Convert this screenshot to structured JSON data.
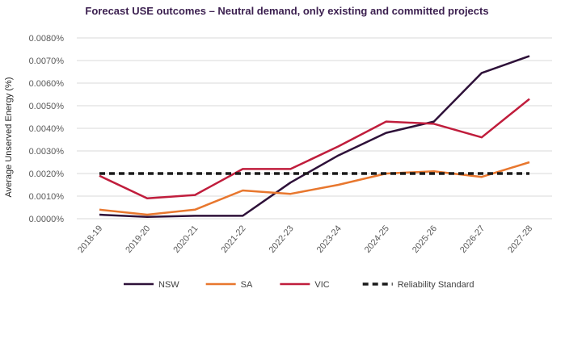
{
  "chart_data": {
    "type": "line",
    "title": "Forecast USE outcomes – Neutral demand, only existing and committed projects",
    "xlabel": "",
    "ylabel": "Average Unserved Energy (%)",
    "categories": [
      "2018-19",
      "2019-20",
      "2020-21",
      "2021-22",
      "2022-23",
      "2023-24",
      "2024-25",
      "2025-26",
      "2026-27",
      "2027-28"
    ],
    "ylim": [
      0,
      0.008
    ],
    "yticks": [
      "0.0000%",
      "0.0010%",
      "0.0020%",
      "0.0030%",
      "0.0040%",
      "0.0050%",
      "0.0060%",
      "0.0070%",
      "0.0080%"
    ],
    "grid": true,
    "legend_position": "bottom",
    "series": [
      {
        "name": "NSW",
        "color": "#2e1139",
        "dashed": false,
        "values": [
          0.00018,
          8e-05,
          0.00013,
          0.00013,
          0.0016,
          0.0028,
          0.0038,
          0.0043,
          0.00645,
          0.0072
        ]
      },
      {
        "name": "SA",
        "color": "#e8772e",
        "dashed": false,
        "values": [
          0.0004,
          0.00018,
          0.0004,
          0.00125,
          0.0011,
          0.0015,
          0.002,
          0.0021,
          0.00185,
          0.0025
        ]
      },
      {
        "name": "VIC",
        "color": "#c01d3c",
        "dashed": false,
        "values": [
          0.0019,
          0.0009,
          0.00105,
          0.0022,
          0.0022,
          0.0032,
          0.0043,
          0.0042,
          0.0036,
          0.0053
        ]
      },
      {
        "name": "Reliability Standard",
        "color": "#1a1a1a",
        "dashed": true,
        "values": [
          0.002,
          0.002,
          0.002,
          0.002,
          0.002,
          0.002,
          0.002,
          0.002,
          0.002,
          0.002
        ]
      }
    ]
  }
}
